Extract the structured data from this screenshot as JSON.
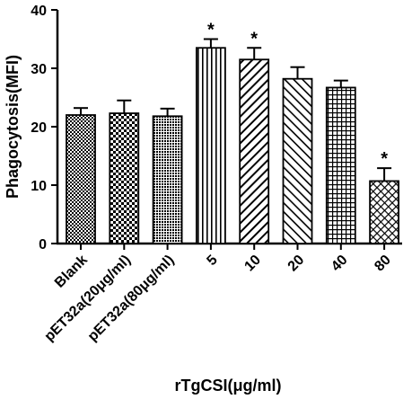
{
  "chart_data": {
    "type": "bar",
    "categories": [
      "Blank",
      "pET32a(20μg/ml)",
      "pET32a(80μg/ml)",
      "5",
      "10",
      "20",
      "40",
      "80"
    ],
    "values": [
      22.0,
      22.3,
      21.8,
      33.5,
      31.5,
      28.2,
      26.7,
      10.7
    ],
    "errors": [
      1.2,
      2.2,
      1.3,
      1.5,
      2.0,
      2.0,
      1.2,
      2.2
    ],
    "significant": [
      false,
      false,
      false,
      true,
      true,
      false,
      false,
      true
    ],
    "significance_marker": "*",
    "patterns": [
      "checker-fine",
      "checker-coarse",
      "dots",
      "vertical-lines",
      "diagonal-down",
      "diagonal-up",
      "grid",
      "crosshatch-diagonal"
    ],
    "xlabel": "rTgCSI(μg/ml)",
    "ylabel": "Phagocytosis(MFI)",
    "ylim": [
      0,
      40
    ],
    "yticks": [
      0,
      10,
      20,
      30,
      40
    ],
    "grid": false,
    "legend": "none"
  }
}
